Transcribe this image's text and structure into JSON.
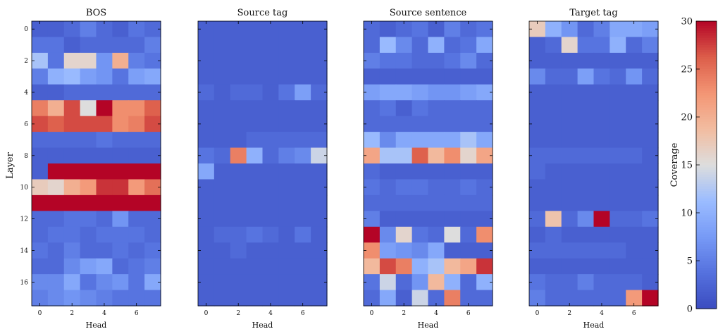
{
  "chart_data": {
    "type": "heatmap",
    "colormap": "coolwarm",
    "shared_ylabel": "Layer",
    "y_ticks": [
      0,
      2,
      4,
      6,
      8,
      10,
      12,
      14,
      16
    ],
    "x_ticks": [
      0,
      2,
      4,
      6
    ],
    "colorbar": {
      "label": "Coverage",
      "vmin": 0,
      "vmax": 30,
      "ticks": [
        0,
        5,
        10,
        15,
        20,
        25,
        30
      ]
    },
    "panels": [
      {
        "title": "BOS",
        "xlabel": "Head",
        "values": [
          [
            2,
            2,
            3,
            5,
            3,
            2,
            4,
            3
          ],
          [
            4,
            4,
            2,
            3,
            3,
            3,
            3,
            5
          ],
          [
            12,
            4,
            16,
            16,
            7,
            20,
            5,
            4
          ],
          [
            5,
            10,
            11,
            8,
            7,
            4,
            8,
            9
          ],
          [
            2,
            2,
            3,
            3,
            3,
            3,
            3,
            3
          ],
          [
            24,
            20,
            27,
            15,
            30,
            23,
            23,
            26
          ],
          [
            27,
            26,
            27,
            27,
            27,
            23,
            24,
            27
          ],
          [
            3,
            3,
            3,
            3,
            4,
            3,
            3,
            3
          ],
          [
            2,
            2,
            2,
            2,
            2,
            2,
            2,
            2
          ],
          [
            2,
            30,
            30,
            30,
            30,
            30,
            30,
            30
          ],
          [
            17,
            16,
            20,
            22,
            28,
            28,
            22,
            25
          ],
          [
            30,
            30,
            30,
            30,
            30,
            30,
            30,
            30
          ],
          [
            3,
            3,
            4,
            4,
            3,
            7,
            3,
            3
          ],
          [
            3,
            4,
            4,
            3,
            4,
            4,
            4,
            3
          ],
          [
            4,
            3,
            5,
            3,
            3,
            4,
            3,
            4
          ],
          [
            3,
            3,
            6,
            8,
            9,
            3,
            4,
            5
          ],
          [
            6,
            6,
            9,
            4,
            6,
            7,
            4,
            9
          ],
          [
            5,
            6,
            7,
            6,
            5,
            4,
            4,
            4
          ]
        ]
      },
      {
        "title": "Source tag",
        "xlabel": "Head",
        "values": [
          [
            2,
            2,
            2,
            2,
            2,
            2,
            2,
            2
          ],
          [
            2,
            2,
            2,
            2,
            2,
            2,
            2,
            2
          ],
          [
            2,
            2,
            2,
            2,
            2,
            2,
            2,
            2
          ],
          [
            2,
            2,
            2,
            2,
            2,
            2,
            2,
            2
          ],
          [
            3,
            2,
            3,
            3,
            2,
            4,
            8,
            3
          ],
          [
            2,
            2,
            2,
            2,
            2,
            2,
            2,
            2
          ],
          [
            2,
            2,
            2,
            2,
            2,
            2,
            2,
            2
          ],
          [
            2,
            2,
            2,
            3,
            3,
            3,
            3,
            3
          ],
          [
            4,
            3,
            24,
            10,
            3,
            5,
            6,
            14
          ],
          [
            9,
            2,
            2,
            2,
            2,
            2,
            2,
            2
          ],
          [
            2,
            2,
            2,
            2,
            2,
            2,
            2,
            2
          ],
          [
            2,
            2,
            2,
            2,
            2,
            2,
            2,
            2
          ],
          [
            2,
            2,
            2,
            2,
            2,
            2,
            2,
            2
          ],
          [
            2,
            3,
            3,
            4,
            3,
            2,
            4,
            2
          ],
          [
            2,
            2,
            3,
            2,
            2,
            2,
            2,
            2
          ],
          [
            2,
            2,
            2,
            2,
            2,
            2,
            2,
            2
          ],
          [
            2,
            2,
            2,
            2,
            2,
            2,
            2,
            2
          ],
          [
            2,
            2,
            2,
            2,
            2,
            2,
            2,
            2
          ]
        ]
      },
      {
        "title": "Source sentence",
        "xlabel": "Head",
        "values": [
          [
            3,
            2,
            3,
            4,
            2,
            5,
            3,
            4
          ],
          [
            3,
            11,
            6,
            3,
            10,
            3,
            4,
            9
          ],
          [
            5,
            4,
            4,
            3,
            3,
            4,
            6,
            3
          ],
          [
            2,
            2,
            2,
            2,
            2,
            2,
            2,
            2
          ],
          [
            8,
            9,
            9,
            8,
            7,
            7,
            8,
            9
          ],
          [
            3,
            4,
            2,
            4,
            3,
            3,
            3,
            3
          ],
          [
            3,
            3,
            3,
            3,
            3,
            3,
            3,
            3
          ],
          [
            11,
            6,
            9,
            9,
            9,
            9,
            12,
            9
          ],
          [
            21,
            12,
            12,
            26,
            19,
            23,
            16,
            21
          ],
          [
            3,
            2,
            2,
            2,
            2,
            2,
            2,
            2
          ],
          [
            4,
            3,
            4,
            4,
            3,
            3,
            4,
            3
          ],
          [
            3,
            3,
            3,
            3,
            3,
            3,
            3,
            3
          ],
          [
            5,
            2,
            2,
            2,
            2,
            2,
            2,
            2
          ],
          [
            30,
            6,
            16,
            4,
            3,
            15,
            3,
            23
          ],
          [
            23,
            8,
            7,
            6,
            9,
            2,
            2,
            2
          ],
          [
            19,
            27,
            24,
            10,
            12,
            19,
            21,
            28
          ],
          [
            4,
            14,
            3,
            7,
            19,
            10,
            3,
            10
          ],
          [
            3,
            9,
            2,
            14,
            3,
            24,
            3,
            3
          ]
        ]
      },
      {
        "title": "Target tag",
        "xlabel": "Head",
        "values": [
          [
            17,
            10,
            7,
            3,
            5,
            9,
            9,
            8
          ],
          [
            2,
            3,
            16,
            4,
            4,
            10,
            3,
            5
          ],
          [
            2,
            2,
            2,
            2,
            2,
            2,
            2,
            2
          ],
          [
            6,
            3,
            3,
            8,
            4,
            3,
            7,
            3
          ],
          [
            2,
            2,
            2,
            2,
            2,
            2,
            2,
            2
          ],
          [
            2,
            2,
            2,
            2,
            2,
            2,
            2,
            2
          ],
          [
            2,
            2,
            2,
            2,
            2,
            2,
            2,
            2
          ],
          [
            2,
            2,
            2,
            2,
            2,
            2,
            2,
            2
          ],
          [
            3,
            3,
            3,
            3,
            3,
            3,
            3,
            2
          ],
          [
            3,
            2,
            2,
            2,
            2,
            2,
            2,
            2
          ],
          [
            2,
            2,
            2,
            2,
            2,
            2,
            2,
            2
          ],
          [
            2,
            2,
            2,
            2,
            2,
            2,
            2,
            2
          ],
          [
            3,
            18,
            3,
            6,
            30,
            3,
            3,
            4
          ],
          [
            2,
            3,
            2,
            2,
            2,
            2,
            2,
            2
          ],
          [
            3,
            3,
            3,
            3,
            3,
            3,
            2,
            2
          ],
          [
            2,
            2,
            2,
            2,
            2,
            2,
            2,
            2
          ],
          [
            4,
            3,
            3,
            5,
            3,
            3,
            3,
            2
          ],
          [
            5,
            3,
            3,
            3,
            3,
            3,
            22,
            30
          ]
        ]
      }
    ]
  }
}
